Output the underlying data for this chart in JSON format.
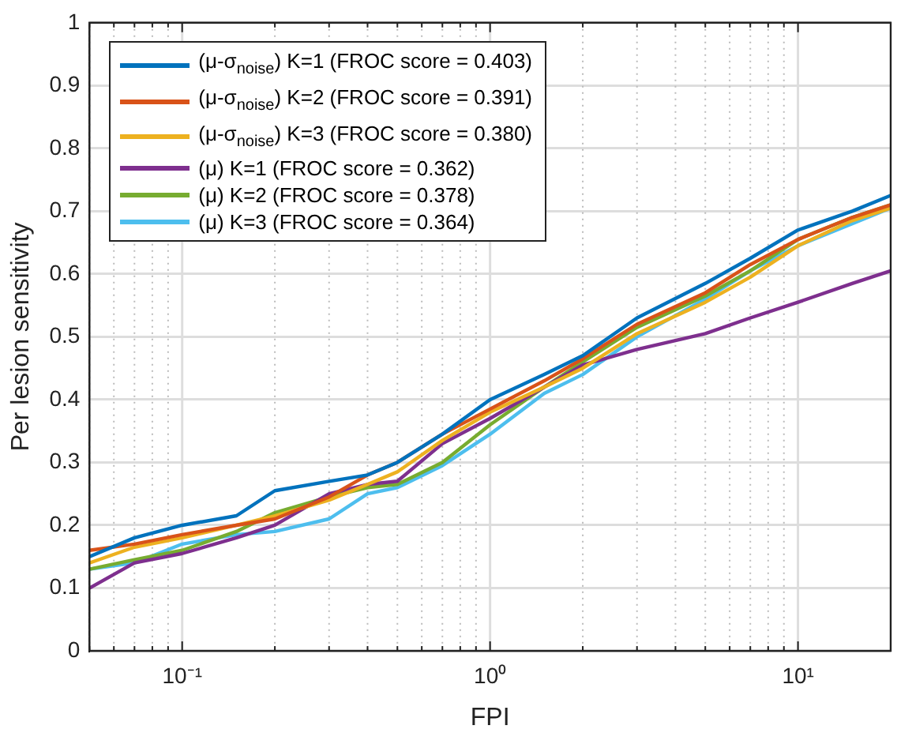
{
  "chart_data": {
    "type": "line",
    "xlabel": "FPI",
    "ylabel": "Per lesion sensitivity",
    "log": "x",
    "grid": true,
    "legend": "top left",
    "line_style": "solid",
    "marker": "none",
    "xlim": [
      0.05,
      20
    ],
    "xticks": [
      {
        "value": 0.05,
        "label": null
      },
      {
        "value": 0.06,
        "label": null
      },
      {
        "value": 0.07,
        "label": null
      },
      {
        "value": 0.08,
        "label": null
      },
      {
        "value": 0.09,
        "label": null
      },
      {
        "value": 0.1,
        "label": "10⁻¹"
      },
      {
        "value": 0.2,
        "label": null
      },
      {
        "value": 0.3,
        "label": null
      },
      {
        "value": 0.4,
        "label": null
      },
      {
        "value": 0.5,
        "label": null
      },
      {
        "value": 0.6,
        "label": null
      },
      {
        "value": 0.7,
        "label": null
      },
      {
        "value": 0.8,
        "label": null
      },
      {
        "value": 0.9,
        "label": null
      },
      {
        "value": 1,
        "label": "10⁰"
      },
      {
        "value": 2,
        "label": null
      },
      {
        "value": 3,
        "label": null
      },
      {
        "value": 4,
        "label": null
      },
      {
        "value": 5,
        "label": null
      },
      {
        "value": 6,
        "label": null
      },
      {
        "value": 7,
        "label": null
      },
      {
        "value": 8,
        "label": null
      },
      {
        "value": 9,
        "label": null
      },
      {
        "value": 10,
        "label": "10¹"
      }
    ],
    "ylim": [
      0,
      1
    ],
    "yticks": [
      0,
      0.1,
      0.2,
      0.3,
      0.4,
      0.5,
      0.6,
      0.7,
      0.8,
      0.9,
      1
    ],
    "x": [
      0.05,
      0.07,
      0.1,
      0.15,
      0.2,
      0.3,
      0.4,
      0.5,
      0.7,
      1,
      1.5,
      2,
      3,
      5,
      7,
      10,
      15,
      20
    ],
    "series": [
      {
        "name": "(μ-σ$_{noise}$) K=1 (FROC score = 0.403)",
        "color": "#0072bd",
        "values": [
          0.15,
          0.18,
          0.2,
          0.215,
          0.255,
          0.27,
          0.28,
          0.3,
          0.345,
          0.4,
          0.44,
          0.47,
          0.53,
          0.585,
          0.625,
          0.67,
          0.7,
          0.725
        ]
      },
      {
        "name": "(μ-σ$_{noise}$) K=2 (FROC score = 0.391)",
        "color": "#d95319",
        "values": [
          0.16,
          0.17,
          0.185,
          0.2,
          0.21,
          0.245,
          0.28,
          0.3,
          0.345,
          0.385,
          0.43,
          0.465,
          0.52,
          0.57,
          0.615,
          0.655,
          0.69,
          0.71
        ]
      },
      {
        "name": "(μ-σ$_{noise}$) K=3 (FROC score = 0.380)",
        "color": "#edb120",
        "values": [
          0.14,
          0.165,
          0.18,
          0.2,
          0.215,
          0.24,
          0.265,
          0.285,
          0.335,
          0.38,
          0.42,
          0.45,
          0.505,
          0.555,
          0.595,
          0.645,
          0.685,
          0.705
        ]
      },
      {
        "name": "(μ) K=1 (FROC score = 0.362)",
        "color": "#7e2f8e",
        "values": [
          0.1,
          0.14,
          0.155,
          0.18,
          0.2,
          0.25,
          0.265,
          0.27,
          0.33,
          0.37,
          0.42,
          0.455,
          0.48,
          0.505,
          0.53,
          0.555,
          0.585,
          0.605
        ]
      },
      {
        "name": "(μ) K=2 (FROC score = 0.378)",
        "color": "#77ac30",
        "values": [
          0.13,
          0.145,
          0.16,
          0.19,
          0.22,
          0.245,
          0.26,
          0.265,
          0.3,
          0.36,
          0.42,
          0.46,
          0.515,
          0.565,
          0.605,
          0.655,
          0.69,
          0.71
        ]
      },
      {
        "name": "(μ) K=3 (FROC score = 0.364)",
        "color": "#4dbeee",
        "values": [
          0.13,
          0.14,
          0.17,
          0.185,
          0.19,
          0.21,
          0.25,
          0.26,
          0.295,
          0.345,
          0.41,
          0.44,
          0.5,
          0.56,
          0.605,
          0.645,
          0.68,
          0.705
        ]
      }
    ]
  }
}
